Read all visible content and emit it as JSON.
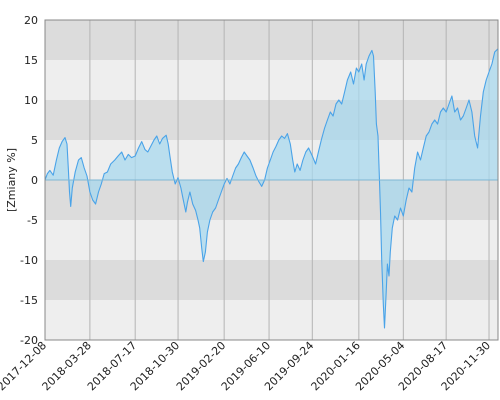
{
  "chart_data": {
    "type": "area",
    "title": "",
    "xlabel": "",
    "ylabel": "[Zmiany %]",
    "ylim": [
      -20,
      20
    ],
    "y_ticks": [
      -20,
      -15,
      -10,
      -5,
      0,
      5,
      10,
      15,
      20
    ],
    "y_tick_labels": [
      "-20",
      "-15",
      "-10",
      "-5",
      "0",
      "5",
      "10",
      "15",
      "20"
    ],
    "x_range": [
      "2017-12-08",
      "2020-12-22"
    ],
    "x_tick_labels": [
      "2017-12-08",
      "2018-03-28",
      "2018-07-17",
      "2018-10-30",
      "2019-02-20",
      "2019-06-10",
      "2019-09-24",
      "2020-01-16",
      "2020-05-04",
      "2020-08-17",
      "2020-11-30"
    ],
    "band_colors": [
      "#dcdcdc",
      "#eeeeee"
    ],
    "line_color": "#4aa3e8",
    "fill_color": "#a8d8ee",
    "grid": true,
    "series": [
      {
        "name": "",
        "points": [
          [
            "2017-12-08",
            0.0
          ],
          [
            "2017-12-14",
            0.8
          ],
          [
            "2017-12-20",
            1.2
          ],
          [
            "2017-12-28",
            0.6
          ],
          [
            "2018-01-05",
            2.5
          ],
          [
            "2018-01-12",
            4.0
          ],
          [
            "2018-01-19",
            4.8
          ],
          [
            "2018-01-26",
            5.3
          ],
          [
            "2018-01-31",
            4.5
          ],
          [
            "2018-02-03",
            1.5
          ],
          [
            "2018-02-06",
            -1.5
          ],
          [
            "2018-02-09",
            -3.3
          ],
          [
            "2018-02-13",
            -1.0
          ],
          [
            "2018-02-20",
            1.0
          ],
          [
            "2018-02-28",
            2.5
          ],
          [
            "2018-03-07",
            2.8
          ],
          [
            "2018-03-14",
            1.5
          ],
          [
            "2018-03-21",
            0.5
          ],
          [
            "2018-03-28",
            -1.5
          ],
          [
            "2018-04-04",
            -2.5
          ],
          [
            "2018-04-11",
            -3.0
          ],
          [
            "2018-04-18",
            -1.5
          ],
          [
            "2018-04-25",
            -0.5
          ],
          [
            "2018-05-02",
            0.8
          ],
          [
            "2018-05-10",
            1.0
          ],
          [
            "2018-05-18",
            2.0
          ],
          [
            "2018-05-28",
            2.5
          ],
          [
            "2018-06-05",
            3.0
          ],
          [
            "2018-06-14",
            3.5
          ],
          [
            "2018-06-22",
            2.5
          ],
          [
            "2018-06-30",
            3.2
          ],
          [
            "2018-07-08",
            2.8
          ],
          [
            "2018-07-17",
            3.0
          ],
          [
            "2018-07-25",
            4.0
          ],
          [
            "2018-08-02",
            4.8
          ],
          [
            "2018-08-10",
            3.8
          ],
          [
            "2018-08-17",
            3.5
          ],
          [
            "2018-08-24",
            4.2
          ],
          [
            "2018-09-01",
            5.0
          ],
          [
            "2018-09-08",
            5.5
          ],
          [
            "2018-09-15",
            4.5
          ],
          [
            "2018-09-22",
            5.2
          ],
          [
            "2018-10-01",
            5.6
          ],
          [
            "2018-10-06",
            4.5
          ],
          [
            "2018-10-10",
            3.0
          ],
          [
            "2018-10-16",
            1.0
          ],
          [
            "2018-10-23",
            -0.5
          ],
          [
            "2018-10-30",
            0.3
          ],
          [
            "2018-11-06",
            -1.0
          ],
          [
            "2018-11-12",
            -2.5
          ],
          [
            "2018-11-18",
            -4.0
          ],
          [
            "2018-11-22",
            -2.8
          ],
          [
            "2018-11-28",
            -1.5
          ],
          [
            "2018-12-05",
            -3.0
          ],
          [
            "2018-12-12",
            -3.8
          ],
          [
            "2018-12-18",
            -5.0
          ],
          [
            "2018-12-22",
            -6.0
          ],
          [
            "2018-12-27",
            -8.5
          ],
          [
            "2018-12-31",
            -10.2
          ],
          [
            "2019-01-05",
            -9.0
          ],
          [
            "2019-01-10",
            -6.5
          ],
          [
            "2019-01-16",
            -5.0
          ],
          [
            "2019-01-23",
            -4.0
          ],
          [
            "2019-01-30",
            -3.5
          ],
          [
            "2019-02-06",
            -2.5
          ],
          [
            "2019-02-13",
            -1.5
          ],
          [
            "2019-02-20",
            -0.5
          ],
          [
            "2019-02-27",
            0.2
          ],
          [
            "2019-03-06",
            -0.5
          ],
          [
            "2019-03-13",
            0.5
          ],
          [
            "2019-03-20",
            1.5
          ],
          [
            "2019-03-27",
            2.0
          ],
          [
            "2019-04-03",
            2.8
          ],
          [
            "2019-04-10",
            3.5
          ],
          [
            "2019-04-17",
            3.0
          ],
          [
            "2019-04-24",
            2.5
          ],
          [
            "2019-05-02",
            1.5
          ],
          [
            "2019-05-09",
            0.5
          ],
          [
            "2019-05-16",
            -0.2
          ],
          [
            "2019-05-23",
            -0.8
          ],
          [
            "2019-05-30",
            0.0
          ],
          [
            "2019-06-06",
            1.5
          ],
          [
            "2019-06-13",
            2.5
          ],
          [
            "2019-06-20",
            3.5
          ],
          [
            "2019-06-27",
            4.2
          ],
          [
            "2019-07-04",
            5.0
          ],
          [
            "2019-07-11",
            5.5
          ],
          [
            "2019-07-18",
            5.2
          ],
          [
            "2019-07-25",
            5.8
          ],
          [
            "2019-08-01",
            4.5
          ],
          [
            "2019-08-07",
            2.5
          ],
          [
            "2019-08-12",
            1.0
          ],
          [
            "2019-08-18",
            2.0
          ],
          [
            "2019-08-25",
            1.2
          ],
          [
            "2019-09-01",
            2.5
          ],
          [
            "2019-09-08",
            3.5
          ],
          [
            "2019-09-15",
            4.0
          ],
          [
            "2019-09-24",
            3.0
          ],
          [
            "2019-10-02",
            2.0
          ],
          [
            "2019-10-09",
            3.5
          ],
          [
            "2019-10-16",
            5.0
          ],
          [
            "2019-10-24",
            6.5
          ],
          [
            "2019-10-31",
            7.5
          ],
          [
            "2019-11-07",
            8.5
          ],
          [
            "2019-11-14",
            8.0
          ],
          [
            "2019-11-21",
            9.5
          ],
          [
            "2019-11-28",
            10.0
          ],
          [
            "2019-12-05",
            9.5
          ],
          [
            "2019-12-12",
            11.0
          ],
          [
            "2019-12-19",
            12.5
          ],
          [
            "2019-12-27",
            13.5
          ],
          [
            "2020-01-03",
            12.0
          ],
          [
            "2020-01-10",
            14.0
          ],
          [
            "2020-01-16",
            13.5
          ],
          [
            "2020-01-23",
            14.5
          ],
          [
            "2020-01-29",
            12.5
          ],
          [
            "2020-02-03",
            14.5
          ],
          [
            "2020-02-10",
            15.5
          ],
          [
            "2020-02-17",
            16.2
          ],
          [
            "2020-02-21",
            15.5
          ],
          [
            "2020-02-25",
            11.0
          ],
          [
            "2020-02-28",
            7.0
          ],
          [
            "2020-03-03",
            5.5
          ],
          [
            "2020-03-06",
            1.0
          ],
          [
            "2020-03-09",
            -4.0
          ],
          [
            "2020-03-12",
            -10.0
          ],
          [
            "2020-03-16",
            -15.5
          ],
          [
            "2020-03-19",
            -18.5
          ],
          [
            "2020-03-23",
            -14.0
          ],
          [
            "2020-03-26",
            -10.5
          ],
          [
            "2020-03-30",
            -12.0
          ],
          [
            "2020-04-02",
            -9.0
          ],
          [
            "2020-04-07",
            -6.0
          ],
          [
            "2020-04-13",
            -4.5
          ],
          [
            "2020-04-20",
            -5.0
          ],
          [
            "2020-04-27",
            -3.5
          ],
          [
            "2020-05-04",
            -4.5
          ],
          [
            "2020-05-11",
            -2.5
          ],
          [
            "2020-05-18",
            -1.0
          ],
          [
            "2020-05-25",
            -1.5
          ],
          [
            "2020-06-01",
            1.5
          ],
          [
            "2020-06-08",
            3.5
          ],
          [
            "2020-06-15",
            2.5
          ],
          [
            "2020-06-22",
            4.0
          ],
          [
            "2020-06-29",
            5.5
          ],
          [
            "2020-07-06",
            6.0
          ],
          [
            "2020-07-13",
            7.0
          ],
          [
            "2020-07-20",
            7.5
          ],
          [
            "2020-07-27",
            7.0
          ],
          [
            "2020-08-03",
            8.5
          ],
          [
            "2020-08-10",
            9.0
          ],
          [
            "2020-08-17",
            8.5
          ],
          [
            "2020-08-24",
            9.5
          ],
          [
            "2020-08-31",
            10.5
          ],
          [
            "2020-09-07",
            8.5
          ],
          [
            "2020-09-14",
            9.0
          ],
          [
            "2020-09-21",
            7.5
          ],
          [
            "2020-09-28",
            8.0
          ],
          [
            "2020-10-05",
            9.0
          ],
          [
            "2020-10-12",
            10.0
          ],
          [
            "2020-10-19",
            8.5
          ],
          [
            "2020-10-26",
            5.5
          ],
          [
            "2020-11-02",
            4.0
          ],
          [
            "2020-11-09",
            8.0
          ],
          [
            "2020-11-16",
            11.0
          ],
          [
            "2020-11-23",
            12.5
          ],
          [
            "2020-11-30",
            13.5
          ],
          [
            "2020-12-07",
            14.5
          ],
          [
            "2020-12-14",
            16.0
          ],
          [
            "2020-12-22",
            16.4
          ]
        ]
      }
    ]
  }
}
